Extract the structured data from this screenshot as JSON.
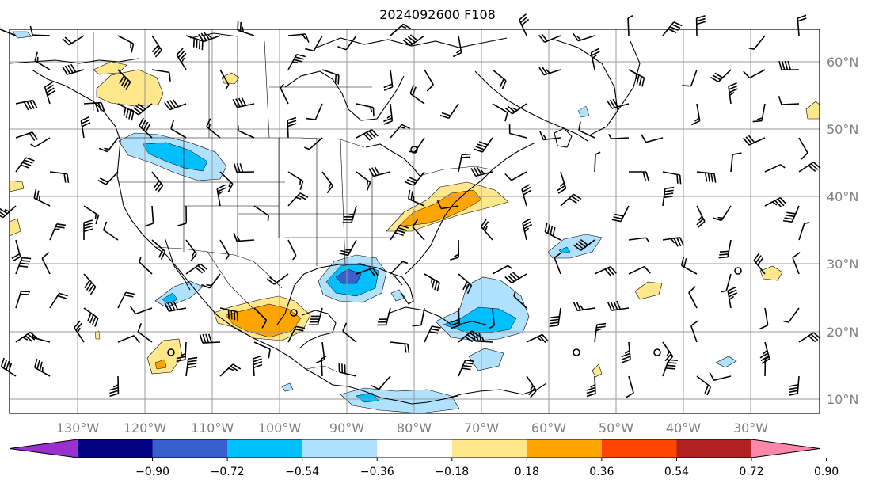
{
  "title": "2024092600 F108",
  "map": {
    "lon_ticks": [
      "130°W",
      "120°W",
      "110°W",
      "100°W",
      "90°W",
      "80°W",
      "70°W",
      "60°W",
      "50°W",
      "40°W",
      "30°W"
    ],
    "lat_ticks": [
      "60°N",
      "50°N",
      "40°N",
      "30°N",
      "20°N",
      "10°N"
    ]
  },
  "colorbar": {
    "ticks": [
      "−0.90",
      "−0.72",
      "−0.54",
      "−0.36",
      "−0.18",
      "0.18",
      "0.36",
      "0.54",
      "0.72",
      "0.90"
    ],
    "colors": [
      "#9b30d0",
      "#000080",
      "#3a5fcd",
      "#00bfff",
      "#b0e2ff",
      "#ffffff",
      "#ffe88c",
      "#ffa500",
      "#ff4500",
      "#b22222",
      "#ff88aa"
    ]
  },
  "anomaly_colors": {
    "neg_light": "#b0e2ff",
    "neg_mid": "#00bfff",
    "neg_dark": "#3a5fcd",
    "pos_light": "#ffe88c",
    "pos_mid": "#ffa500"
  }
}
